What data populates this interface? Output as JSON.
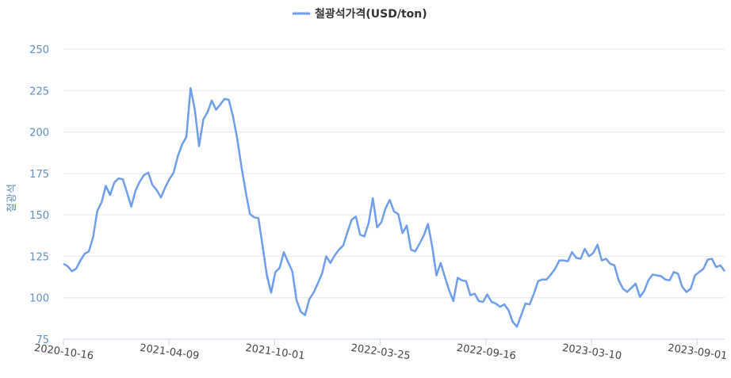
{
  "chart_data": {
    "type": "line",
    "title": "",
    "xlabel": "",
    "ylabel": "철광석",
    "ylim": [
      75,
      250
    ],
    "yticks": [
      75,
      100,
      125,
      150,
      175,
      200,
      225,
      250
    ],
    "xticks": [
      "2020-10-16",
      "2021-04-09",
      "2021-10-01",
      "2022-03-25",
      "2022-09-16",
      "2023-03-10",
      "2023-09-01"
    ],
    "grid": true,
    "legend_position": "top-center",
    "series": [
      {
        "name": "철광석가격(USD/ton)",
        "color": "#6d9eeb",
        "values": [
          120.5,
          119,
          116,
          117.5,
          122.5,
          126.5,
          128,
          136.5,
          152.5,
          157.5,
          167.5,
          162,
          169.5,
          172,
          171.5,
          163.5,
          155,
          164.5,
          170,
          174,
          175.5,
          168,
          165,
          160.5,
          166.5,
          171.5,
          175.5,
          185.5,
          192.5,
          197,
          226.5,
          213.5,
          191.5,
          207.5,
          212,
          219,
          213.5,
          216.5,
          220,
          219.5,
          209.5,
          196,
          179,
          164,
          150.5,
          148.5,
          148,
          131,
          113.5,
          103,
          115.5,
          118,
          127.5,
          121.5,
          116,
          98.5,
          91.5,
          89.5,
          99,
          103,
          108.5,
          114.5,
          125,
          121,
          125.5,
          129,
          131.5,
          139.5,
          147,
          149,
          138,
          137,
          145,
          160,
          142.5,
          145.5,
          154,
          159,
          152,
          150.5,
          139,
          143.5,
          129,
          128,
          132.5,
          137.5,
          144.5,
          131,
          113.5,
          121,
          112.5,
          104.5,
          98,
          112,
          110.5,
          110,
          101.5,
          102.5,
          98,
          97.5,
          102,
          97.5,
          96.5,
          94.5,
          96,
          92.5,
          85.5,
          82.5,
          89.5,
          96.5,
          96,
          102.5,
          110,
          111,
          111,
          114,
          117.5,
          122.5,
          122.5,
          122,
          127.5,
          124,
          123.5,
          129.5,
          125,
          127,
          132,
          122.5,
          123.5,
          120.5,
          119.5,
          110.5,
          105.5,
          103.5,
          106,
          108.5,
          100.5,
          104,
          110.5,
          114,
          113.5,
          113,
          111,
          110.5,
          115.5,
          114.5,
          106.5,
          103.5,
          105.5,
          113.5,
          115.5,
          117.5,
          123,
          123.5,
          118.5,
          119.5,
          116
        ]
      }
    ]
  }
}
